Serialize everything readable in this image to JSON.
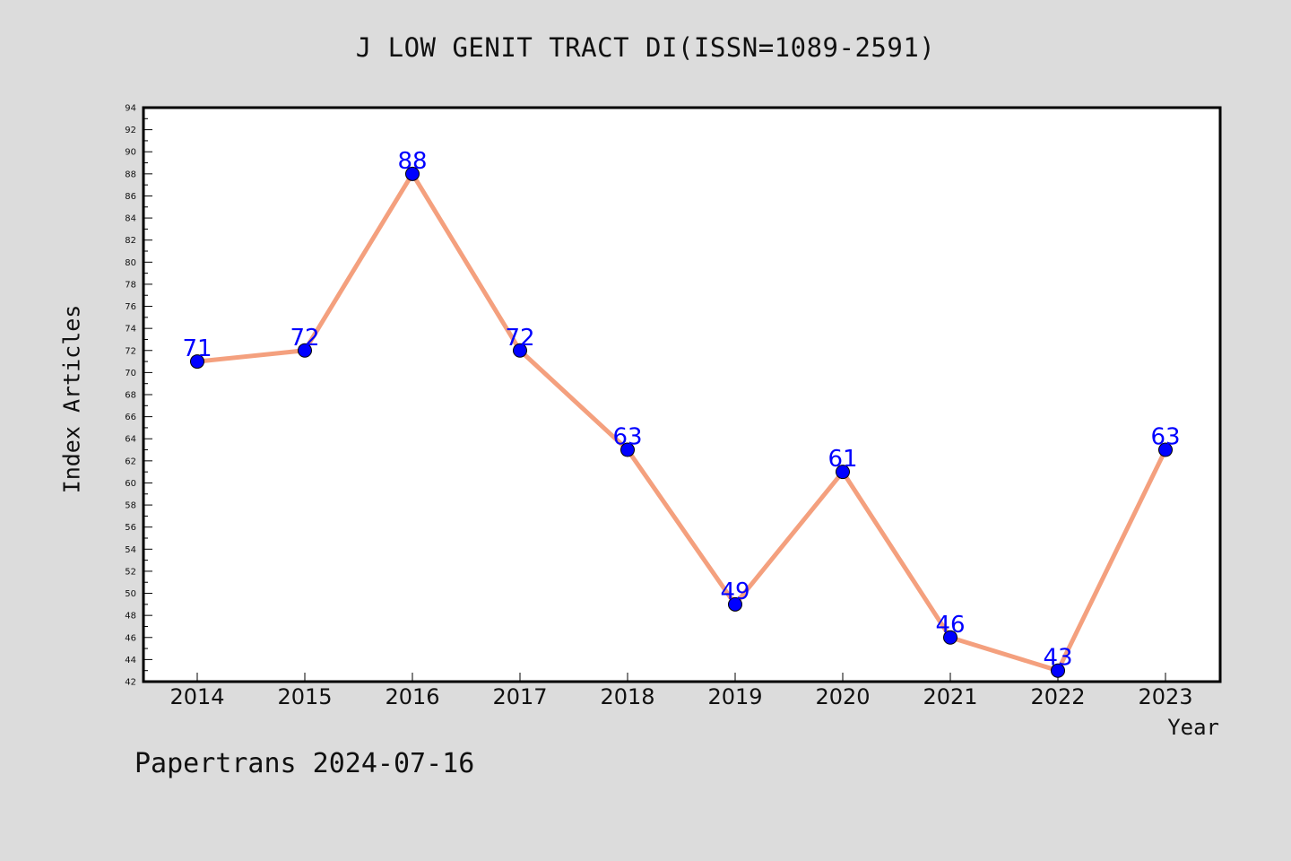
{
  "chart_data": {
    "type": "line",
    "title": "J LOW GENIT TRACT DI(ISSN=1089-2591)",
    "xlabel": "Year",
    "ylabel": "Index Articles",
    "categories": [
      "2014",
      "2015",
      "2016",
      "2017",
      "2018",
      "2019",
      "2020",
      "2021",
      "2022",
      "2023"
    ],
    "series": [
      {
        "values": [
          71,
          72,
          88,
          72,
          63,
          49,
          61,
          46,
          43,
          63
        ]
      }
    ],
    "data_labels": [
      "71",
      "72",
      "88",
      "72",
      "63",
      "49",
      "61",
      "46",
      "43",
      "63"
    ],
    "ylim": [
      42,
      94
    ],
    "ytick_step": 2,
    "grid": false,
    "line_color": "#f4a07e",
    "marker_color": "#0000ff",
    "label_color": "#0000ff"
  },
  "footer": "Papertrans 2024-07-16"
}
